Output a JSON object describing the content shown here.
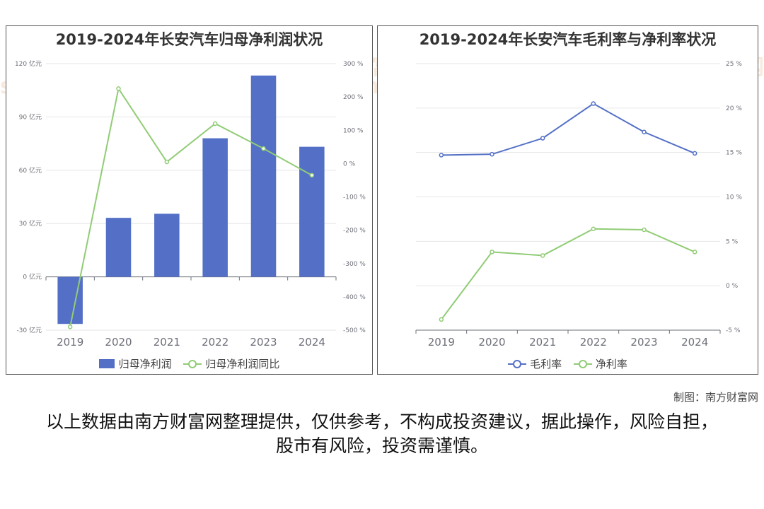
{
  "chart_data": [
    {
      "type": "bar+line",
      "title": "2019-2024年长安汽车归母净利润状况",
      "categories": [
        "2019",
        "2020",
        "2021",
        "2022",
        "2023",
        "2024"
      ],
      "series": [
        {
          "name": "归母净利润",
          "type": "bar",
          "axis": "left",
          "color": "#5470c6",
          "values": [
            -26.5,
            33.2,
            35.5,
            78.0,
            113.3,
            73.2
          ]
        },
        {
          "name": "归母净利润同比",
          "type": "line",
          "axis": "right",
          "color": "#91cc75",
          "values": [
            -490,
            225,
            5,
            120,
            45,
            -35
          ]
        }
      ],
      "y_left": {
        "min": -30,
        "max": 120,
        "ticks": [
          -30,
          0,
          30,
          60,
          90,
          120
        ],
        "unit": "亿元",
        "tick_labels": [
          "-30 亿元",
          "0 亿元",
          "30 亿元",
          "60 亿元",
          "90 亿元",
          "120 亿元"
        ]
      },
      "y_right": {
        "min": -500,
        "max": 300,
        "ticks": [
          -500,
          -400,
          -300,
          -200,
          -100,
          0,
          100,
          200,
          300
        ],
        "unit": "%",
        "tick_labels": [
          "-500 %",
          "-400 %",
          "-300 %",
          "-200 %",
          "-100 %",
          "0 %",
          "100 %",
          "200 %",
          "300 %"
        ]
      },
      "legend_position": "bottom"
    },
    {
      "type": "line",
      "title": "2019-2024年长安汽车毛利率与净利率状况",
      "categories": [
        "2019",
        "2020",
        "2021",
        "2022",
        "2023",
        "2024"
      ],
      "series": [
        {
          "name": "毛利率",
          "color": "#5470c6",
          "values": [
            14.7,
            14.8,
            16.6,
            20.5,
            17.3,
            14.9
          ]
        },
        {
          "name": "净利率",
          "color": "#91cc75",
          "values": [
            -3.8,
            3.8,
            3.4,
            6.4,
            6.3,
            3.8
          ]
        }
      ],
      "y_right": {
        "min": -5,
        "max": 25,
        "ticks": [
          -5,
          0,
          5,
          10,
          15,
          20,
          25
        ],
        "unit": "%",
        "tick_labels": [
          "-5 %",
          "0 %",
          "5 %",
          "10 %",
          "15 %",
          "20 %",
          "25 %"
        ]
      },
      "legend_position": "bottom"
    }
  ],
  "watermark": {
    "cn": "南方财富网",
    "en": "southmoney.com"
  },
  "credit": "制图：南方财富网",
  "disclaimer": "以上数据由南方财富网整理提供，仅供参考，不构成投资建议，据此操作，风险自担，股市有风险，投资需谨慎。"
}
